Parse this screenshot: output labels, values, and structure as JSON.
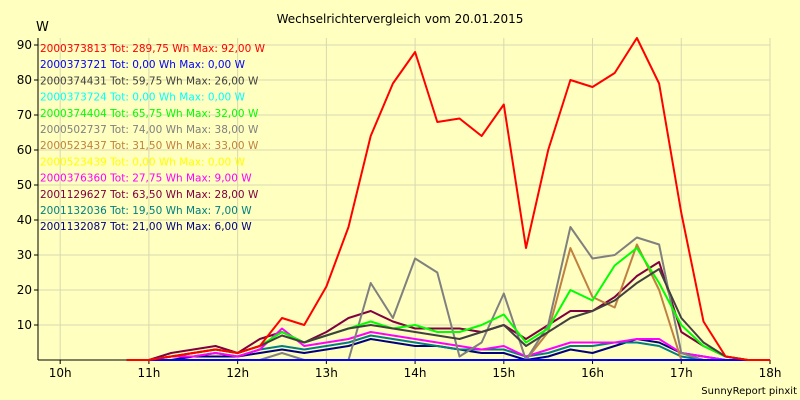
{
  "chart_data": {
    "type": "line",
    "title": "Wechselrichtervergleich vom 20.01.2015",
    "ylabel": "W",
    "xlabel": "",
    "footer": "SunnyReport pinxit",
    "ylim": [
      0,
      92
    ],
    "xlim": [
      9.75,
      18.0
    ],
    "y_ticks": [
      10,
      20,
      30,
      40,
      50,
      60,
      70,
      80,
      90
    ],
    "x_ticks": [
      10,
      11,
      12,
      13,
      14,
      15,
      16,
      17,
      18
    ],
    "x_tick_labels": [
      "10h",
      "11h",
      "12h",
      "13h",
      "14h",
      "15h",
      "16h",
      "17h",
      "18h"
    ],
    "grid": true,
    "legend_position": "top-left",
    "x": [
      10.75,
      11.0,
      11.25,
      11.5,
      11.75,
      12.0,
      12.25,
      12.5,
      12.75,
      13.0,
      13.25,
      13.5,
      13.75,
      14.0,
      14.25,
      14.5,
      14.75,
      15.0,
      15.25,
      15.5,
      15.75,
      16.0,
      16.25,
      16.5,
      16.75,
      17.0,
      17.25,
      17.5,
      17.75,
      18.0
    ],
    "series": [
      {
        "name": "2000373813 Tot: 289,75 Wh Max: 92,00 W",
        "color": "#ff0000",
        "values": [
          0,
          0,
          1,
          2,
          3,
          2,
          4,
          12,
          10,
          21,
          38,
          64,
          79,
          88,
          68,
          69,
          64,
          73,
          32,
          60,
          80,
          78,
          82,
          92,
          79,
          42,
          11,
          1,
          0,
          0
        ]
      },
      {
        "name": "2000373721 Tot: 0,00 Wh Max: 0,00 W",
        "color": "#0000ff",
        "values": [
          0,
          0,
          0,
          0,
          0,
          0,
          0,
          0,
          0,
          0,
          0,
          0,
          0,
          0,
          0,
          0,
          0,
          0,
          0,
          0,
          0,
          0,
          0,
          0,
          0,
          0,
          0,
          0,
          0,
          0
        ]
      },
      {
        "name": "2000374431 Tot: 59,75 Wh Max: 26,00 W",
        "color": "#404040",
        "values": [
          0,
          0,
          1,
          2,
          3,
          2,
          4,
          7,
          5,
          7,
          9,
          10,
          9,
          8,
          7,
          6,
          8,
          10,
          4,
          8,
          12,
          14,
          17,
          22,
          26,
          12,
          5,
          1,
          0,
          0
        ]
      },
      {
        "name": "2000373724 Tot: 0,00 Wh Max: 0,00 W",
        "color": "#00ffff",
        "values": [
          0,
          0,
          0,
          0,
          0,
          0,
          0,
          0,
          0,
          0,
          0,
          0,
          0,
          0,
          0,
          0,
          0,
          0,
          0,
          0,
          0,
          0,
          0,
          0,
          0,
          0,
          0,
          0,
          0,
          0
        ]
      },
      {
        "name": "2000374404 Tot: 65,75 Wh Max: 32,00 W",
        "color": "#00ff00",
        "values": [
          0,
          0,
          1,
          2,
          3,
          2,
          4,
          8,
          5,
          7,
          9,
          11,
          9,
          10,
          8,
          8,
          10,
          13,
          5,
          9,
          20,
          17,
          27,
          32,
          22,
          10,
          4,
          1,
          0,
          0
        ]
      },
      {
        "name": "2000502737 Tot: 74,00 Wh Max: 38,00 W",
        "color": "#808080",
        "values": [
          0,
          0,
          0,
          0,
          0,
          0,
          0,
          2,
          0,
          0,
          0,
          22,
          12,
          29,
          25,
          1,
          5,
          19,
          0,
          10,
          38,
          29,
          30,
          35,
          33,
          2,
          0,
          0,
          0,
          0
        ]
      },
      {
        "name": "2000523437 Tot: 31,50 Wh Max: 33,00 W",
        "color": "#c08040",
        "values": [
          0,
          0,
          0,
          0,
          0,
          0,
          0,
          0,
          0,
          0,
          0,
          0,
          0,
          0,
          0,
          0,
          0,
          0,
          0,
          8,
          32,
          18,
          15,
          33,
          20,
          0,
          0,
          0,
          0,
          0
        ]
      },
      {
        "name": "2000523439 Tot: 0,00 Wh Max: 0,00 W",
        "color": "#ffff00",
        "values": [
          0,
          0,
          0,
          0,
          0,
          0,
          0,
          0,
          0,
          0,
          0,
          0,
          0,
          0,
          0,
          0,
          0,
          0,
          0,
          0,
          0,
          0,
          0,
          0,
          0,
          0,
          0,
          0,
          0,
          0
        ]
      },
      {
        "name": "2000376360 Tot: 27,75 Wh Max: 9,00 W",
        "color": "#ff00ff",
        "values": [
          0,
          0,
          1,
          1,
          2,
          1,
          3,
          9,
          4,
          5,
          6,
          8,
          7,
          6,
          5,
          4,
          3,
          4,
          1,
          3,
          5,
          5,
          5,
          6,
          6,
          2,
          1,
          0,
          0,
          0
        ]
      },
      {
        "name": "2001129627 Tot: 63,50 Wh Max: 28,00 W",
        "color": "#800040",
        "values": [
          0,
          0,
          2,
          3,
          4,
          2,
          6,
          8,
          5,
          8,
          12,
          14,
          11,
          9,
          9,
          9,
          8,
          10,
          6,
          10,
          14,
          14,
          18,
          24,
          28,
          8,
          4,
          1,
          0,
          0
        ]
      },
      {
        "name": "2001132036 Tot: 19,50 Wh Max: 7,00 W",
        "color": "#008080",
        "values": [
          0,
          0,
          1,
          1,
          2,
          1,
          3,
          4,
          3,
          4,
          5,
          7,
          6,
          5,
          4,
          3,
          3,
          3,
          1,
          2,
          4,
          4,
          5,
          5,
          4,
          1,
          0,
          0,
          0,
          0
        ]
      },
      {
        "name": "2001132087 Tot: 21,00 Wh Max: 6,00 W",
        "color": "#000080",
        "values": [
          0,
          0,
          0,
          1,
          1,
          1,
          2,
          3,
          2,
          3,
          4,
          6,
          5,
          4,
          4,
          3,
          2,
          2,
          0,
          1,
          3,
          2,
          4,
          6,
          5,
          2,
          1,
          0,
          0,
          0
        ]
      }
    ]
  }
}
